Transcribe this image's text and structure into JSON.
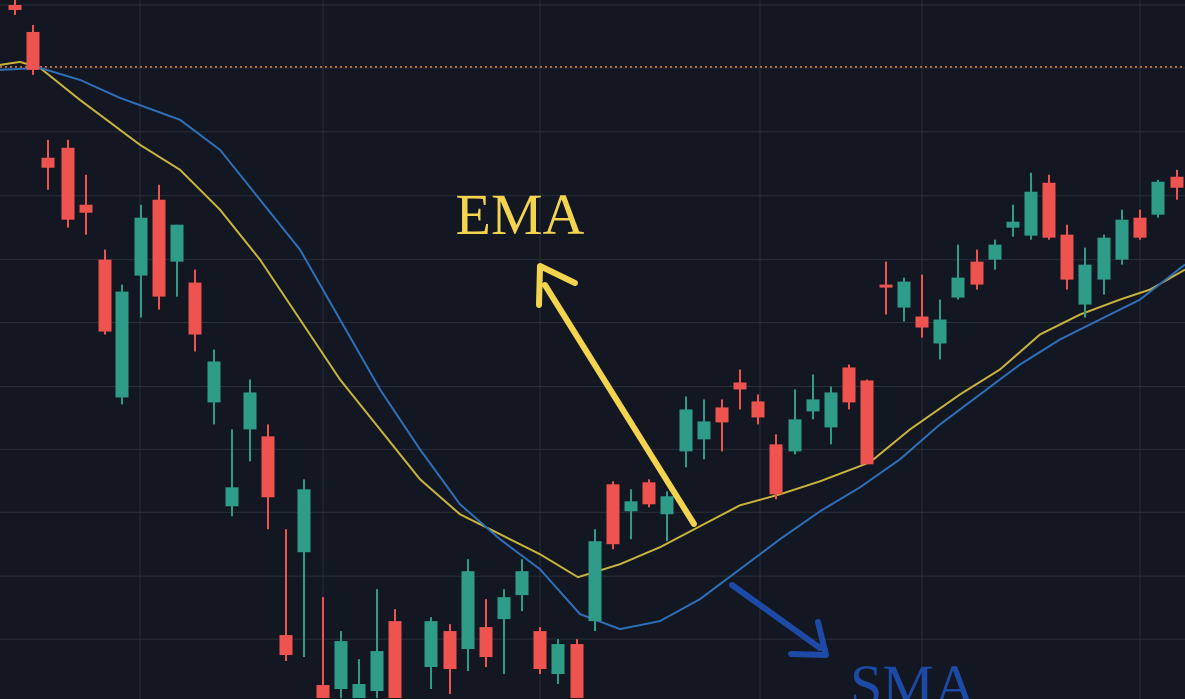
{
  "chart_data": {
    "type": "candlestick",
    "xlim": [
      0,
      1185
    ],
    "ylim": [
      0,
      700
    ],
    "xticks": [
      140,
      323,
      540,
      760,
      922,
      1140
    ],
    "yticks": [
      60,
      123,
      187,
      250,
      313,
      377,
      440,
      504,
      568,
      632,
      695
    ],
    "grid": true,
    "up_color": "#2e9c88",
    "down_color": "#ef5350",
    "reference_line": 633,
    "reference_color": "#e0823a",
    "x": [
      15,
      33,
      48,
      68,
      86,
      105,
      122,
      141,
      159,
      177,
      195,
      214,
      232,
      250,
      268,
      286,
      304,
      323,
      341,
      359,
      377,
      395,
      431,
      450,
      468,
      486,
      504,
      522,
      540,
      558,
      577,
      595,
      613,
      631,
      649,
      667,
      686,
      704,
      722,
      740,
      758,
      776,
      795,
      813,
      831,
      849,
      867,
      886,
      904,
      922,
      940,
      958,
      977,
      995,
      1013,
      1031,
      1049,
      1067,
      1085,
      1104,
      1122,
      1140,
      1158,
      1177
    ],
    "open": [
      695,
      668,
      542,
      552,
      495,
      440,
      302,
      424,
      500,
      438,
      417,
      297,
      193,
      270,
      263,
      64,
      147,
      14,
      10,
      1,
      8,
      78,
      32,
      68,
      50,
      72,
      80,
      104,
      68,
      25,
      55,
      78,
      215,
      188,
      217,
      185,
      248,
      260,
      292,
      317,
      298,
      255,
      248,
      288,
      272,
      332,
      319,
      415,
      392,
      383,
      356,
      402,
      438,
      440,
      472,
      464,
      517,
      465,
      395,
      420,
      440,
      482,
      485,
      523
    ],
    "high": [
      700,
      675,
      560,
      560,
      525,
      450,
      415,
      495,
      515,
      475,
      430,
      350,
      270,
      320,
      275,
      170,
      220,
      102,
      68,
      40,
      110,
      90,
      82,
      75,
      140,
      100,
      110,
      140,
      72,
      60,
      60,
      170,
      218,
      210,
      220,
      208,
      303,
      300,
      300,
      330,
      305,
      265,
      310,
      325,
      313,
      335,
      320,
      438,
      422,
      425,
      400,
      455,
      450,
      460,
      495,
      527,
      525,
      475,
      452,
      465,
      490,
      490,
      520,
      530
    ],
    "low": [
      685,
      625,
      510,
      472,
      465,
      365,
      295,
      382,
      390,
      403,
      348,
      275,
      183,
      238,
      170,
      38,
      42,
      1,
      1,
      1,
      1,
      1,
      10,
      5,
      28,
      32,
      25,
      88,
      25,
      15,
      1,
      68,
      150,
      160,
      192,
      158,
      232,
      240,
      248,
      290,
      275,
      200,
      245,
      280,
      255,
      290,
      235,
      385,
      378,
      362,
      340,
      400,
      410,
      430,
      463,
      460,
      460,
      410,
      382,
      405,
      435,
      460,
      482,
      500
    ],
    "close": [
      690,
      630,
      532,
      480,
      487,
      368,
      408,
      482,
      403,
      475,
      365,
      338,
      212,
      307,
      202,
      44,
      210,
      1,
      58,
      15,
      48,
      1,
      78,
      30,
      128,
      42,
      102,
      128,
      30,
      55,
      1,
      158,
      155,
      198,
      195,
      203,
      290,
      278,
      277,
      310,
      282,
      205,
      280,
      300,
      307,
      297,
      235,
      412,
      418,
      372,
      380,
      422,
      415,
      455,
      478,
      508,
      462,
      420,
      435,
      462,
      480,
      462,
      518,
      512
    ],
    "lines": [
      {
        "name": "EMA",
        "color": "#c8b43c",
        "label_color": "#f2d44e",
        "x": [
          0,
          20,
          40,
          80,
          140,
          180,
          220,
          260,
          300,
          340,
          380,
          420,
          460,
          500,
          540,
          578,
          620,
          660,
          700,
          740,
          780,
          820,
          870,
          910,
          960,
          1000,
          1040,
          1080,
          1120,
          1150,
          1185
        ],
        "values": [
          635,
          638,
          632,
          600,
          555,
          530,
          490,
          440,
          380,
          320,
          270,
          220,
          185,
          165,
          145,
          122,
          135,
          152,
          173,
          194,
          205,
          218,
          237,
          270,
          305,
          330,
          365,
          385,
          400,
          410,
          430
        ]
      },
      {
        "name": "SMA",
        "color": "#2e6fb8",
        "label_color": "#1d4aa6",
        "x": [
          0,
          40,
          80,
          120,
          180,
          220,
          260,
          300,
          340,
          380,
          420,
          460,
          500,
          540,
          580,
          620,
          660,
          700,
          740,
          780,
          820,
          860,
          900,
          940,
          980,
          1020,
          1060,
          1100,
          1140,
          1185
        ],
        "values": [
          630,
          632,
          620,
          602,
          580,
          550,
          500,
          450,
          380,
          310,
          250,
          195,
          160,
          130,
          85,
          70,
          78,
          100,
          130,
          160,
          188,
          212,
          240,
          275,
          305,
          335,
          360,
          380,
          400,
          435
        ]
      }
    ]
  }
}
